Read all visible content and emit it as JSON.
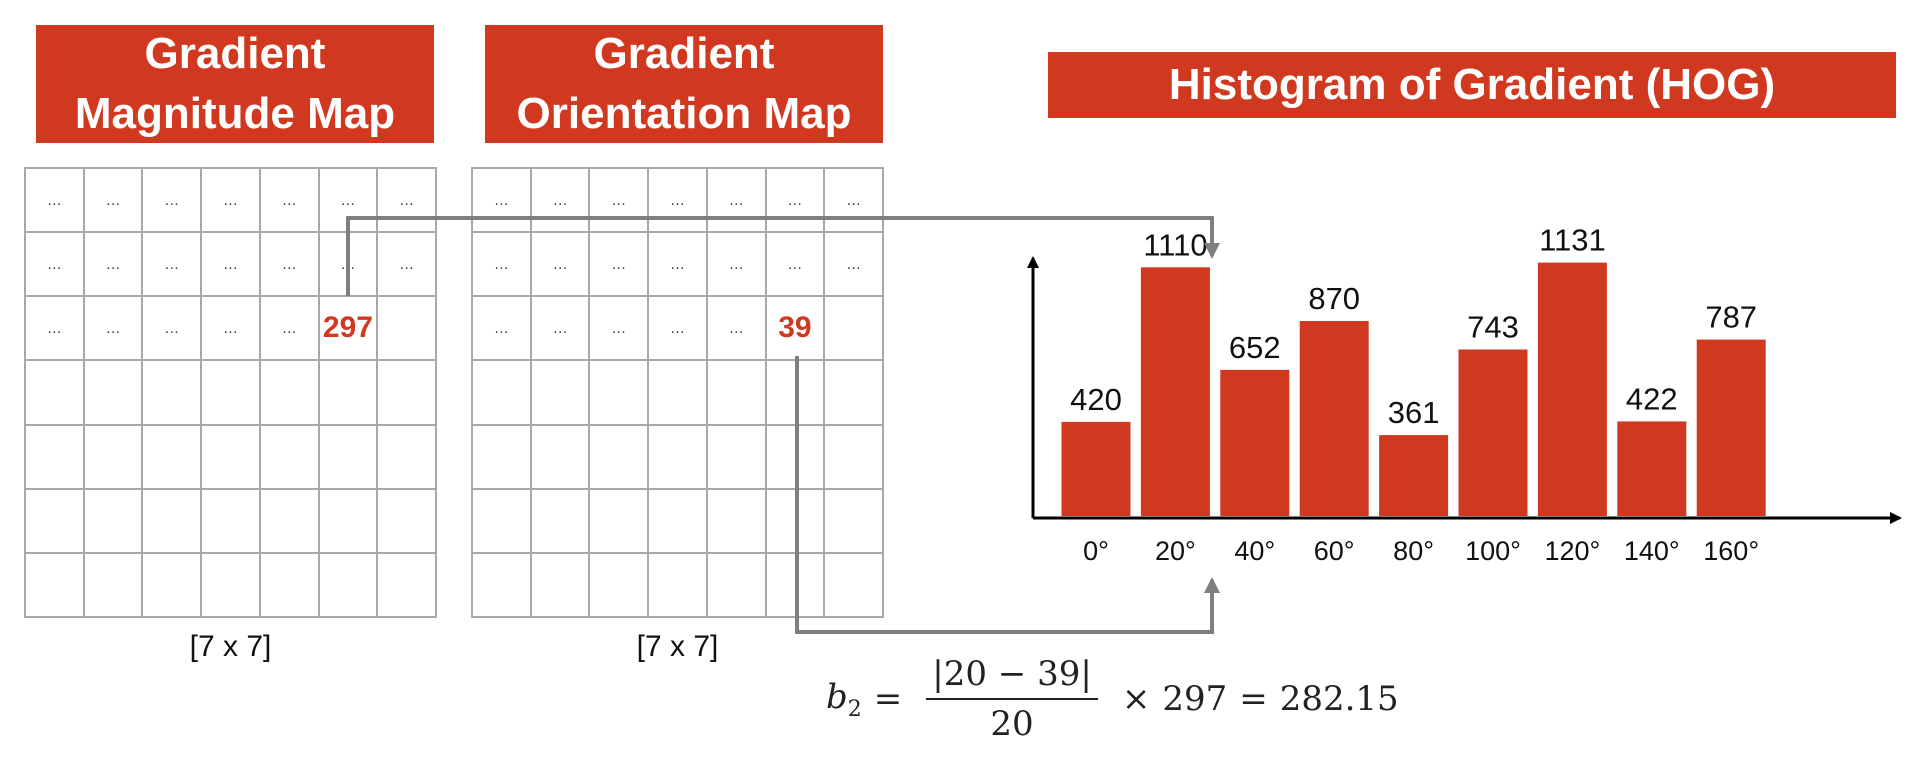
{
  "panels": {
    "magnitude": {
      "title_lines": [
        "Gradient",
        "Magnitude Map"
      ],
      "size_label": "[7 x 7]",
      "highlight": "297"
    },
    "orientation": {
      "title_lines": [
        "Gradient",
        "Orientation Map"
      ],
      "size_label": "[7 x 7]",
      "highlight": "39"
    },
    "grid_placeholder": "…",
    "grid_rows": 7,
    "grid_cols": 7
  },
  "histogram": {
    "title": "Histogram of Gradient (HOG)"
  },
  "chart_data": {
    "type": "bar",
    "title": "Histogram of Gradient (HOG)",
    "categories": [
      "0°",
      "20°",
      "40°",
      "60°",
      "80°",
      "100°",
      "120°",
      "140°",
      "160°"
    ],
    "values": [
      420,
      1110,
      652,
      870,
      361,
      743,
      1131,
      422,
      787
    ],
    "ylim": [
      0,
      1300
    ],
    "grid": false,
    "colors": {
      "bar": "#d0391f",
      "axis": "#000000",
      "arrow": "#7f7f7f"
    }
  },
  "formula": {
    "lhs_var": "b",
    "lhs_sub": "2",
    "eq": "=",
    "numerator": "|20 − 39|",
    "denominator": "20",
    "times": "×",
    "factor": "297",
    "eq2": "=",
    "result": "282.15"
  }
}
